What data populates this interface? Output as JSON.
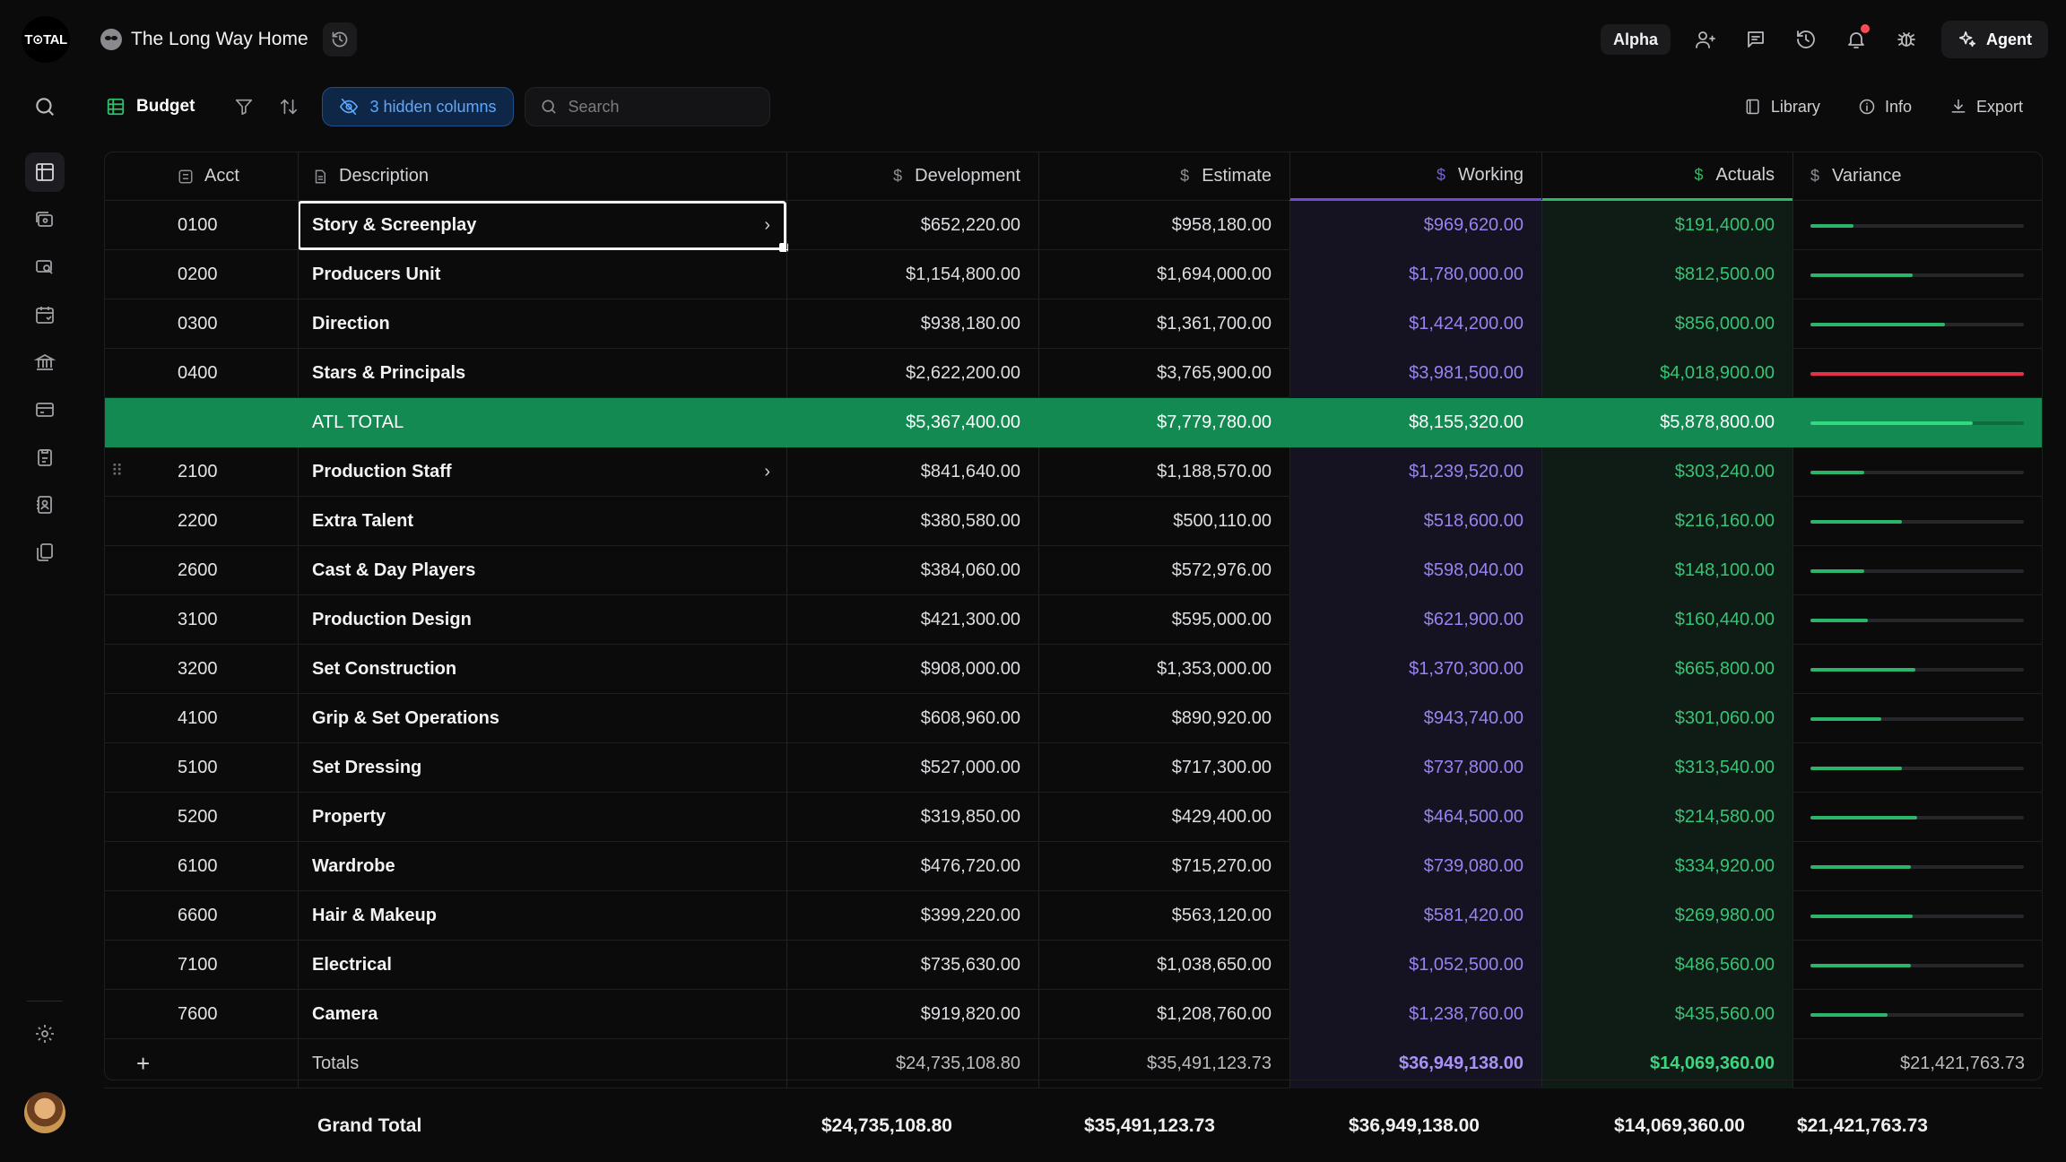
{
  "app": {
    "logo_text": "T⊙TAL",
    "project_title": "The Long Way Home"
  },
  "topbar": {
    "alpha_label": "Alpha",
    "agent_label": "Agent",
    "icons": [
      "users-icon",
      "chat-icon",
      "history-icon",
      "bell-icon",
      "bug-icon"
    ]
  },
  "toolbar": {
    "view_label": "Budget",
    "hidden_columns_label": "3 hidden columns",
    "search_placeholder": "Search",
    "library_label": "Library",
    "info_label": "Info",
    "export_label": "Export"
  },
  "table": {
    "headers": {
      "acct": "Acct",
      "description": "Description",
      "development": "Development",
      "estimate": "Estimate",
      "working": "Working",
      "actuals": "Actuals",
      "variance": "Variance"
    },
    "rows": [
      {
        "acct": "0100",
        "desc": "Story & Screenplay",
        "dev": "$652,220.00",
        "est": "$958,180.00",
        "work": "$969,620.00",
        "act": "$191,400.00",
        "variance_fill": 0.2,
        "variance_color": "#2ab56a",
        "selected": true,
        "chevron": true
      },
      {
        "acct": "0200",
        "desc": "Producers Unit",
        "dev": "$1,154,800.00",
        "est": "$1,694,000.00",
        "work": "$1,780,000.00",
        "act": "$812,500.00",
        "variance_fill": 0.48,
        "variance_color": "#2ab56a"
      },
      {
        "acct": "0300",
        "desc": "Direction",
        "dev": "$938,180.00",
        "est": "$1,361,700.00",
        "work": "$1,424,200.00",
        "act": "$856,000.00",
        "variance_fill": 0.63,
        "variance_color": "#2ab56a"
      },
      {
        "acct": "0400",
        "desc": "Stars & Principals",
        "dev": "$2,622,200.00",
        "est": "$3,765,900.00",
        "work": "$3,981,500.00",
        "act": "$4,018,900.00",
        "variance_fill": 1.0,
        "variance_color": "#e5304c"
      },
      {
        "acct": "",
        "desc": "ATL TOTAL",
        "dev": "$5,367,400.00",
        "est": "$7,779,780.00",
        "work": "$8,155,320.00",
        "act": "$5,878,800.00",
        "variance_fill": 0.76,
        "variance_color": "#32d87f",
        "total": true
      },
      {
        "acct": "2100",
        "desc": "Production Staff",
        "dev": "$841,640.00",
        "est": "$1,188,570.00",
        "work": "$1,239,520.00",
        "act": "$303,240.00",
        "variance_fill": 0.25,
        "variance_color": "#2ab56a",
        "chevron": true,
        "drag": true
      },
      {
        "acct": "2200",
        "desc": "Extra Talent",
        "dev": "$380,580.00",
        "est": "$500,110.00",
        "work": "$518,600.00",
        "act": "$216,160.00",
        "variance_fill": 0.43,
        "variance_color": "#2ab56a"
      },
      {
        "acct": "2600",
        "desc": "Cast & Day Players",
        "dev": "$384,060.00",
        "est": "$572,976.00",
        "work": "$598,040.00",
        "act": "$148,100.00",
        "variance_fill": 0.25,
        "variance_color": "#2ab56a"
      },
      {
        "acct": "3100",
        "desc": "Production Design",
        "dev": "$421,300.00",
        "est": "$595,000.00",
        "work": "$621,900.00",
        "act": "$160,440.00",
        "variance_fill": 0.27,
        "variance_color": "#2ab56a"
      },
      {
        "acct": "3200",
        "desc": "Set Construction",
        "dev": "$908,000.00",
        "est": "$1,353,000.00",
        "work": "$1,370,300.00",
        "act": "$665,800.00",
        "variance_fill": 0.49,
        "variance_color": "#2ab56a"
      },
      {
        "acct": "4100",
        "desc": "Grip & Set Operations",
        "dev": "$608,960.00",
        "est": "$890,920.00",
        "work": "$943,740.00",
        "act": "$301,060.00",
        "variance_fill": 0.33,
        "variance_color": "#2ab56a"
      },
      {
        "acct": "5100",
        "desc": "Set Dressing",
        "dev": "$527,000.00",
        "est": "$717,300.00",
        "work": "$737,800.00",
        "act": "$313,540.00",
        "variance_fill": 0.43,
        "variance_color": "#2ab56a"
      },
      {
        "acct": "5200",
        "desc": "Property",
        "dev": "$319,850.00",
        "est": "$429,400.00",
        "work": "$464,500.00",
        "act": "$214,580.00",
        "variance_fill": 0.5,
        "variance_color": "#2ab56a"
      },
      {
        "acct": "6100",
        "desc": "Wardrobe",
        "dev": "$476,720.00",
        "est": "$715,270.00",
        "work": "$739,080.00",
        "act": "$334,920.00",
        "variance_fill": 0.47,
        "variance_color": "#2ab56a"
      },
      {
        "acct": "6600",
        "desc": "Hair & Makeup",
        "dev": "$399,220.00",
        "est": "$563,120.00",
        "work": "$581,420.00",
        "act": "$269,980.00",
        "variance_fill": 0.48,
        "variance_color": "#2ab56a"
      },
      {
        "acct": "7100",
        "desc": "Electrical",
        "dev": "$735,630.00",
        "est": "$1,038,650.00",
        "work": "$1,052,500.00",
        "act": "$486,560.00",
        "variance_fill": 0.47,
        "variance_color": "#2ab56a"
      },
      {
        "acct": "7600",
        "desc": "Camera",
        "dev": "$919,820.00",
        "est": "$1,208,760.00",
        "work": "$1,238,760.00",
        "act": "$435,560.00",
        "variance_fill": 0.36,
        "variance_color": "#2ab56a"
      }
    ],
    "totals": {
      "label": "Totals",
      "dev": "$24,735,108.80",
      "est": "$35,491,123.73",
      "work": "$36,949,138.00",
      "act": "$14,069,360.00",
      "variance": "$21,421,763.73"
    }
  },
  "grand_total": {
    "label": "Grand Total",
    "dev": "$24,735,108.80",
    "est": "$35,491,123.73",
    "work": "$36,949,138.00",
    "act": "$14,069,360.00",
    "variance": "$21,421,763.73"
  }
}
